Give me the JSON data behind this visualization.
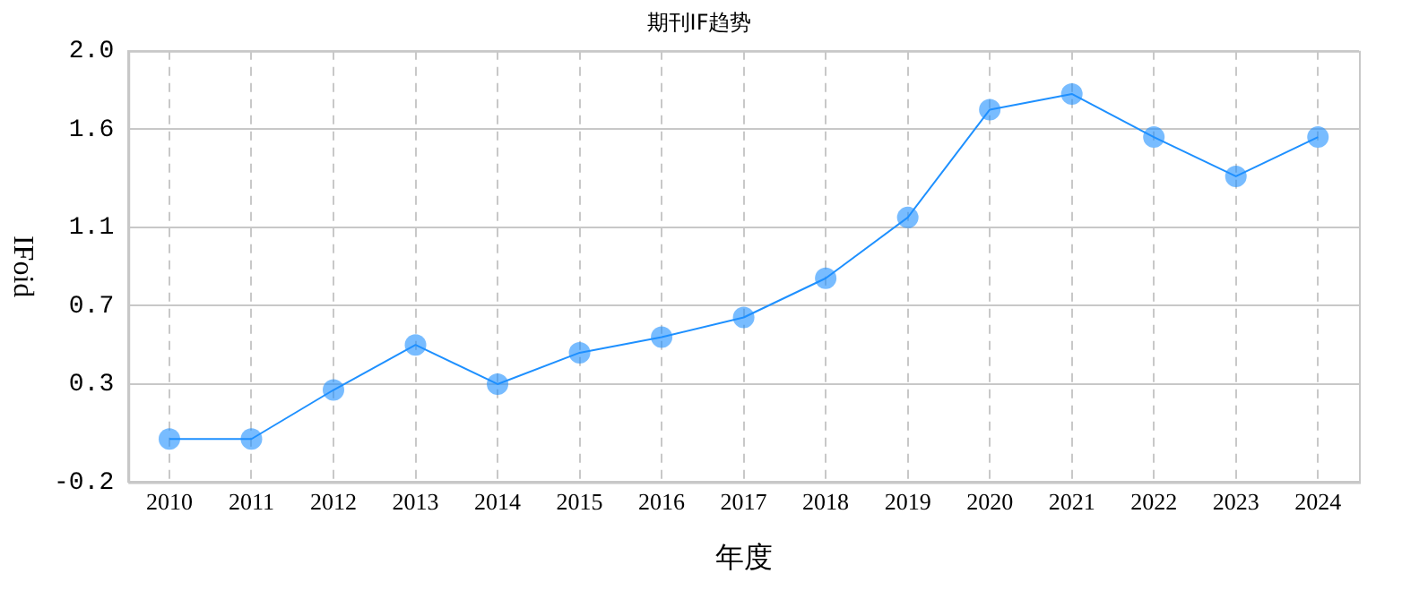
{
  "chart_data": {
    "type": "line",
    "title": "期刊IF趋势",
    "xlabel": "年度",
    "ylabel": "IFoid",
    "categories": [
      "2010",
      "2011",
      "2012",
      "2013",
      "2014",
      "2015",
      "2016",
      "2017",
      "2018",
      "2019",
      "2020",
      "2021",
      "2022",
      "2023",
      "2024"
    ],
    "series": [
      {
        "color": "#1e90ff",
        "values": [
          0.02,
          0.02,
          0.27,
          0.5,
          0.3,
          0.46,
          0.54,
          0.64,
          0.84,
          1.15,
          1.7,
          1.78,
          1.56,
          1.36,
          1.56
        ]
      }
    ],
    "ylim": [
      -0.2,
      2.0
    ],
    "yticks": [
      -0.2,
      0.3,
      0.7,
      1.1,
      1.6,
      {
        "value": 2,
        "label": "2.0"
      }
    ],
    "grid": true,
    "marker": "circle",
    "line_style": "solid",
    "legend": false
  }
}
